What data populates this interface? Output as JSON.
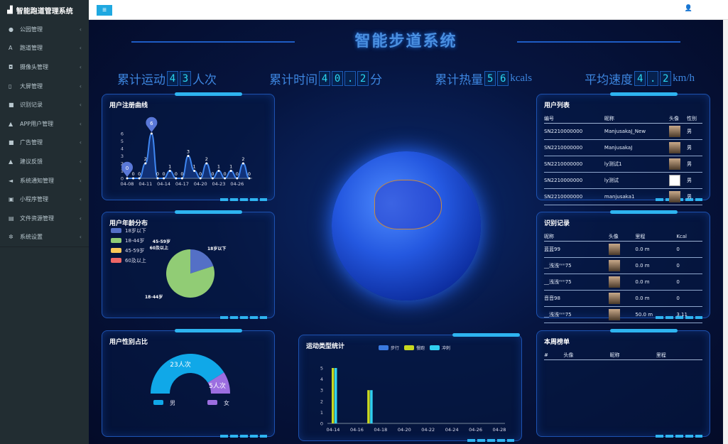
{
  "sidebar": {
    "brand": "智能跑道管理系统",
    "items": [
      {
        "label": "公园管理",
        "icon": "map-pin-icon"
      },
      {
        "label": "跑道管理",
        "icon": "road-icon"
      },
      {
        "label": "摄像头管理",
        "icon": "camera-icon"
      },
      {
        "label": "大屏管理",
        "icon": "tablet-icon"
      },
      {
        "label": "识别记录",
        "icon": "video-icon"
      },
      {
        "label": "APP用户管理",
        "icon": "user-icon"
      },
      {
        "label": "广告管理",
        "icon": "video-icon"
      },
      {
        "label": "建议反馈",
        "icon": "user-icon"
      },
      {
        "label": "系统通知管理",
        "icon": "bullhorn-icon"
      },
      {
        "label": "小程序管理",
        "icon": "window-icon"
      },
      {
        "label": "文件资源管理",
        "icon": "file-icon"
      },
      {
        "label": "系统设置",
        "icon": "gear-icon"
      }
    ]
  },
  "topbar": {
    "menu_icon": "≡",
    "user_icon": "user-icon"
  },
  "screen": {
    "title": "智能步道系统",
    "stats": [
      {
        "label": "累计运动",
        "digits": [
          "4",
          "3"
        ],
        "unit": "人次"
      },
      {
        "label": "累计时间",
        "digits": [
          "4",
          "0",
          ".",
          "2"
        ],
        "unit": "分"
      },
      {
        "label": "累计热量",
        "digits": [
          "5",
          "6"
        ],
        "unit": "kcals"
      },
      {
        "label": "平均速度",
        "digits": [
          "4",
          ".",
          "2"
        ],
        "unit": "km/h"
      }
    ]
  },
  "colors": {
    "accent": "#2eb4f0",
    "male": "#10a8e8",
    "female": "#9c6ee0",
    "walk": "#3a7ae0",
    "jog": "#c8d820",
    "sprint": "#30d0f0"
  },
  "chart_data": [
    {
      "type": "line",
      "title": "用户注册曲线",
      "categories": [
        "04-08",
        "04-09",
        "04-10",
        "04-11",
        "04-12",
        "04-13",
        "04-14",
        "04-15",
        "04-16",
        "04-17",
        "04-18",
        "04-19",
        "04-20",
        "04-21",
        "04-22",
        "04-23",
        "04-24",
        "04-25",
        "04-26",
        "04-27",
        "04-28"
      ],
      "xticks": [
        "04-08",
        "04-11",
        "04-14",
        "04-17",
        "04-20",
        "04-23",
        "04-26"
      ],
      "values": [
        0,
        0,
        0,
        2,
        6,
        0,
        0,
        1,
        0,
        0,
        3,
        1,
        0,
        2,
        0,
        1,
        0,
        1,
        0,
        2,
        0
      ],
      "ylim": [
        0,
        6
      ],
      "markers": [
        "min",
        "max"
      ]
    },
    {
      "type": "pie",
      "title": "用户年龄分布",
      "legend": [
        "18岁以下",
        "18-44岁",
        "45-59岁",
        "60及以上"
      ],
      "values": [
        20,
        80,
        0,
        0
      ],
      "colors": [
        "#5470c6",
        "#91cc75",
        "#fac858",
        "#ee6666"
      ],
      "labels": [
        "18岁以下",
        "18-44岁",
        "45-59岁",
        "60及以上"
      ]
    },
    {
      "type": "pie",
      "title": "用户性别占比",
      "legend": [
        "男",
        "女"
      ],
      "values": [
        23,
        5
      ],
      "labels": [
        "23人次",
        "5人次"
      ]
    },
    {
      "type": "bar",
      "title": "运动类型统计",
      "legend": [
        "步行",
        "慢跑",
        "冲刺"
      ],
      "categories": [
        "04-14",
        "04-15",
        "04-16",
        "04-17",
        "04-18",
        "04-19",
        "04-20",
        "04-21",
        "04-22",
        "04-23",
        "04-24",
        "04-25",
        "04-26",
        "04-27",
        "04-28"
      ],
      "xticks": [
        "04-14",
        "04-16",
        "04-18",
        "04-20",
        "04-22",
        "04-24",
        "04-26",
        "04-28"
      ],
      "series": [
        {
          "name": "步行",
          "values": [
            0,
            0,
            0,
            0,
            0,
            0,
            0,
            0,
            0,
            0,
            0,
            0,
            0,
            0,
            0
          ]
        },
        {
          "name": "慢跑",
          "values": [
            5,
            0,
            0,
            3,
            0,
            0,
            0,
            0,
            0,
            0,
            0,
            0,
            0,
            0,
            0
          ]
        },
        {
          "name": "冲刺",
          "values": [
            5,
            0,
            0,
            3,
            0,
            0,
            0,
            0,
            0,
            0,
            0,
            0,
            0,
            0,
            0
          ]
        }
      ],
      "ylim": [
        0,
        5
      ]
    }
  ],
  "user_list": {
    "title": "用户列表",
    "headers": [
      "编号",
      "昵称",
      "头像",
      "性别"
    ],
    "rows": [
      {
        "id": "SN2210000000",
        "name": "ManjusakaJ_New",
        "gender": "男"
      },
      {
        "id": "SN2210000000",
        "name": "ManjusakaJ",
        "gender": "男"
      },
      {
        "id": "SN2210000000",
        "name": "ly测试1",
        "gender": "男"
      },
      {
        "id": "SN2210000000",
        "name": "ly测试",
        "gender": "男",
        "broken": true
      },
      {
        "id": "SN2210000000",
        "name": "manjusaka1",
        "gender": "男"
      }
    ]
  },
  "records": {
    "title": "识别记录",
    "headers": [
      "昵称",
      "头像",
      "里程",
      "Kcal"
    ],
    "rows": [
      {
        "name": "蓝蓝99",
        "distance": "0.0 m",
        "kcal": "0"
      },
      {
        "name": "__浅浅ᵐᵐ75",
        "distance": "0.0 m",
        "kcal": "0"
      },
      {
        "name": "__浅浅ᵐᵐ75",
        "distance": "0.0 m",
        "kcal": "0"
      },
      {
        "name": "音音98",
        "distance": "0.0 m",
        "kcal": "0"
      },
      {
        "name": "__浅浅ᵐᵐ75",
        "distance": "50.0 m",
        "kcal": "3.11"
      }
    ]
  },
  "weekly": {
    "title": "本周榜单",
    "headers": [
      "#",
      "头像",
      "昵称",
      "里程"
    ]
  }
}
